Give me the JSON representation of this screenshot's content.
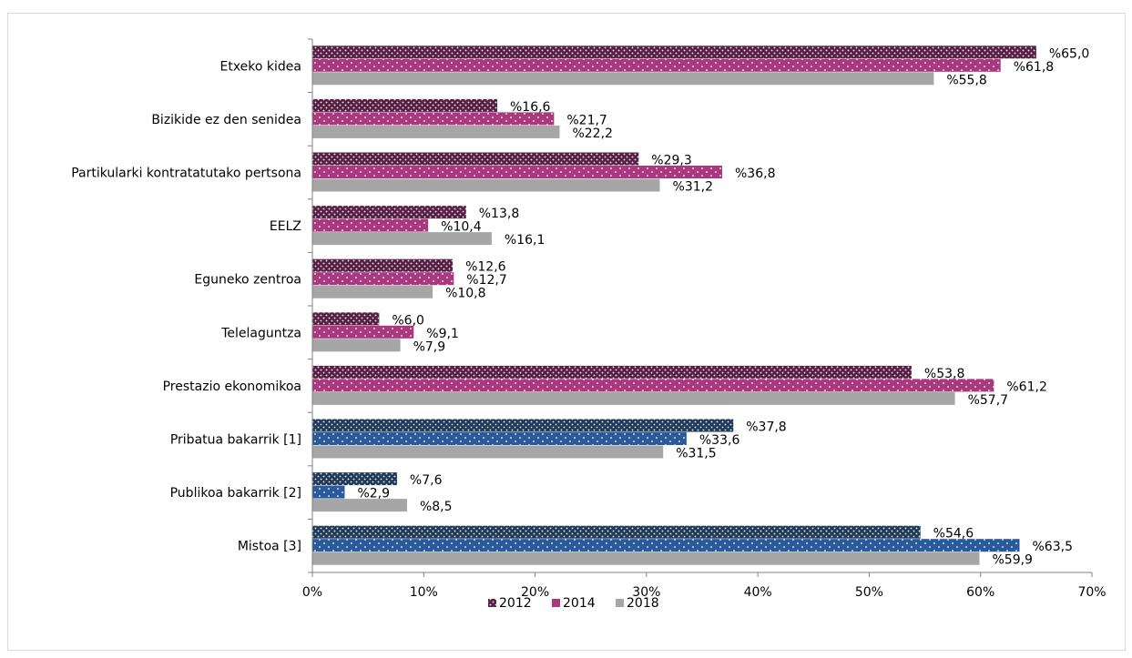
{
  "chart_data": {
    "type": "bar",
    "orientation": "horizontal",
    "categories": [
      "Etxeko kidea",
      "Bizikide ez den senidea",
      "Partikularki kontratatutako pertsona",
      "EELZ",
      "Eguneko zentroa",
      "Telelaguntza",
      "Prestazio ekonomikoa",
      "Pribatua bakarrik [1]",
      "Publikoa bakarrik [2]",
      "Mistoa [3]"
    ],
    "series": [
      {
        "name": "2012",
        "values": [
          65.0,
          16.6,
          29.3,
          13.8,
          12.6,
          6.0,
          53.8,
          37.8,
          7.6,
          54.6
        ],
        "labels": [
          "%65,0",
          "%16,6",
          "%29,3",
          "%13,8",
          "%12,6",
          "%6,0",
          "%53,8",
          "%37,8",
          "%7,6",
          "%54,6"
        ]
      },
      {
        "name": "2014",
        "values": [
          61.8,
          21.7,
          36.8,
          10.4,
          12.7,
          9.1,
          61.2,
          33.6,
          2.9,
          63.5
        ],
        "labels": [
          "%61,8",
          "%21,7",
          "%36,8",
          "%10,4",
          "%12,7",
          "%9,1",
          "%61,2",
          "%33,6",
          "%2,9",
          "%63,5"
        ]
      },
      {
        "name": "2018",
        "values": [
          55.8,
          22.2,
          31.2,
          16.1,
          10.8,
          7.9,
          57.7,
          31.5,
          8.5,
          59.9
        ],
        "labels": [
          "%55,8",
          "%22,2",
          "%31,2",
          "%16,1",
          "%10,8",
          "%7,9",
          "%57,7",
          "%31,5",
          "%8,5",
          "%59,9"
        ]
      }
    ],
    "x_ticks": [
      "0%",
      "10%",
      "20%",
      "30%",
      "40%",
      "50%",
      "60%",
      "70%"
    ],
    "xlim": [
      0,
      70
    ],
    "grid": false,
    "legend_position": "bottom",
    "colors": {
      "2012_pink_group": "#5a1f45",
      "2014_pink_group": "#a8397e",
      "2012_blue_group": "#1f3a5c",
      "2014_blue_group": "#2a5a9a",
      "2018": "#a6a6a6",
      "axis": "#808080"
    },
    "blue_group_categories": [
      "Pribatua bakarrik [1]",
      "Publikoa bakarrik [2]",
      "Mistoa [3]"
    ]
  }
}
